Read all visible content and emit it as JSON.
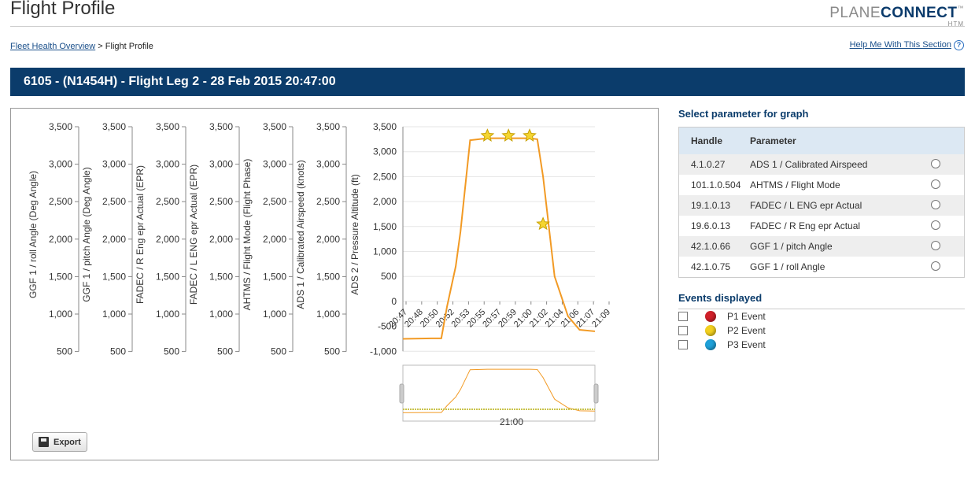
{
  "header": {
    "title": "Flight Profile",
    "logo_plane": "PLANE",
    "logo_connect": "CONNECT",
    "logo_tm": "™",
    "logo_sub": "HTM"
  },
  "breadcrumb": {
    "parent": "Fleet Health Overview",
    "separator": ">",
    "current": "Flight Profile"
  },
  "help": {
    "label": "Help Me With This Section",
    "icon": "?"
  },
  "banner": {
    "title": "6105 - (N1454H) - Flight Leg 2 - 28 Feb 2015 20:47:00"
  },
  "export_label": "Export",
  "colors": {
    "banner": "#0b3c6b",
    "series": "#f29a24",
    "p1": "#d0202a",
    "p2": "#f2d020",
    "p3": "#1ea0d8"
  },
  "chart_data": {
    "type": "line",
    "left_axes": [
      {
        "label": "GGF 1 / roll Angle (Deg Angle)",
        "ticks": [
          "3,500",
          "3,000",
          "2,500",
          "2,000",
          "1,500",
          "1,000",
          "500"
        ]
      },
      {
        "label": "GGF 1 / pitch Angle (Deg Angle)",
        "ticks": [
          "3,500",
          "3,000",
          "2,500",
          "2,000",
          "1,500",
          "1,000",
          "500"
        ]
      },
      {
        "label": "FADEC / R Eng epr Actual (EPR)",
        "ticks": [
          "3,500",
          "3,000",
          "2,500",
          "2,000",
          "1,500",
          "1,000",
          "500"
        ]
      },
      {
        "label": "FADEC / L ENG epr Actual (EPR)",
        "ticks": [
          "3,500",
          "3,000",
          "2,500",
          "2,000",
          "1,500",
          "1,000",
          "500"
        ]
      },
      {
        "label": "AHTMS / Flight Mode (Flight Phase)",
        "ticks": [
          "3,500",
          "3,000",
          "2,500",
          "2,000",
          "1,500",
          "1,000",
          "500"
        ]
      },
      {
        "label": "ADS 1 / Calibrated Airspeed (knots)",
        "ticks": [
          "3,500",
          "3,000",
          "2,500",
          "2,000",
          "1,500",
          "1,000",
          "500"
        ]
      }
    ],
    "main_axis": {
      "label": "ADS 2 / Pressure Altitude (ft)",
      "ticks": [
        "3,500",
        "3,000",
        "2,500",
        "2,000",
        "1,500",
        "1,000",
        "500",
        "0",
        "-500",
        "-1,000"
      ],
      "ylim": [
        -1000,
        3500
      ]
    },
    "x_ticks": [
      "20:47",
      "20:48",
      "20:50",
      "20:52",
      "20:53",
      "20:55",
      "20:57",
      "20:59",
      "21:00",
      "21:02",
      "21:04",
      "21:06",
      "21:07",
      "21:09"
    ],
    "series": [
      {
        "x": [
          0,
          0.15,
          0.2,
          0.23,
          0.275,
          0.3,
          0.35,
          0.44,
          0.55,
          0.62,
          0.66,
          0.7,
          0.73,
          0.79,
          0.86,
          0.92,
          1.0
        ],
        "values": [
          -750,
          -740,
          -740,
          -100,
          700,
          1400,
          3230,
          3270,
          3270,
          3270,
          3270,
          3250,
          2500,
          500,
          -300,
          -570,
          -600
        ]
      }
    ],
    "markers": [
      {
        "x": 0.44,
        "y": 3320
      },
      {
        "x": 0.55,
        "y": 3320
      },
      {
        "x": 0.66,
        "y": 3320
      },
      {
        "x": 0.73,
        "y": 1550
      }
    ],
    "navigator_label": "21:00"
  },
  "panel": {
    "select_title": "Select parameter for graph",
    "col_handle": "Handle",
    "col_parameter": "Parameter",
    "rows": [
      {
        "handle": "4.1.0.27",
        "parameter": "ADS 1 / Calibrated Airspeed"
      },
      {
        "handle": "101.1.0.504",
        "parameter": "AHTMS / Flight Mode"
      },
      {
        "handle": "19.1.0.13",
        "parameter": "FADEC / L ENG epr Actual"
      },
      {
        "handle": "19.6.0.13",
        "parameter": "FADEC / R Eng epr Actual"
      },
      {
        "handle": "42.1.0.66",
        "parameter": "GGF 1 / pitch Angle"
      },
      {
        "handle": "42.1.0.75",
        "parameter": "GGF 1 / roll Angle"
      }
    ],
    "events_title": "Events displayed",
    "events": [
      {
        "label": "P1 Event"
      },
      {
        "label": "P2 Event"
      },
      {
        "label": "P3 Event"
      }
    ]
  }
}
